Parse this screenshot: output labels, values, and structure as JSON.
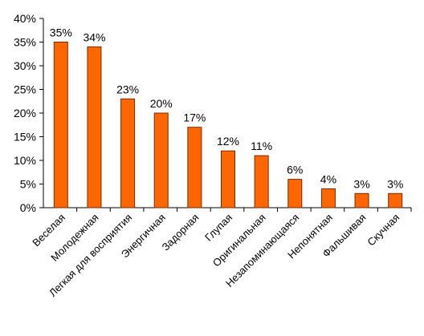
{
  "chart_data": {
    "type": "bar",
    "title": "",
    "xlabel": "",
    "ylabel": "",
    "categories": [
      "Веселая",
      "Молодежная",
      "Легкая для восприятия",
      "Энергичная",
      "Задорная",
      "Глупая",
      "Оригинальная",
      "Незапоминающаяся",
      "Непонятная",
      "Фальшивая",
      "Скучная"
    ],
    "values": [
      35,
      34,
      23,
      20,
      17,
      12,
      11,
      6,
      4,
      3,
      3
    ],
    "data_labels": [
      "35%",
      "34%",
      "23%",
      "20%",
      "17%",
      "12%",
      "11%",
      "6%",
      "4%",
      "3%",
      "3%"
    ],
    "y_ticks": [
      0,
      5,
      10,
      15,
      20,
      25,
      30,
      35,
      40
    ],
    "y_tick_labels": [
      "0%",
      "5%",
      "10%",
      "15%",
      "20%",
      "25%",
      "30%",
      "35%",
      "40%"
    ],
    "ylim": [
      0,
      40
    ],
    "grid": false,
    "legend": "none",
    "colors": {
      "bar_fill": "#ff6600",
      "bar_edge": "#7a2a00",
      "axis": "#000000"
    }
  }
}
